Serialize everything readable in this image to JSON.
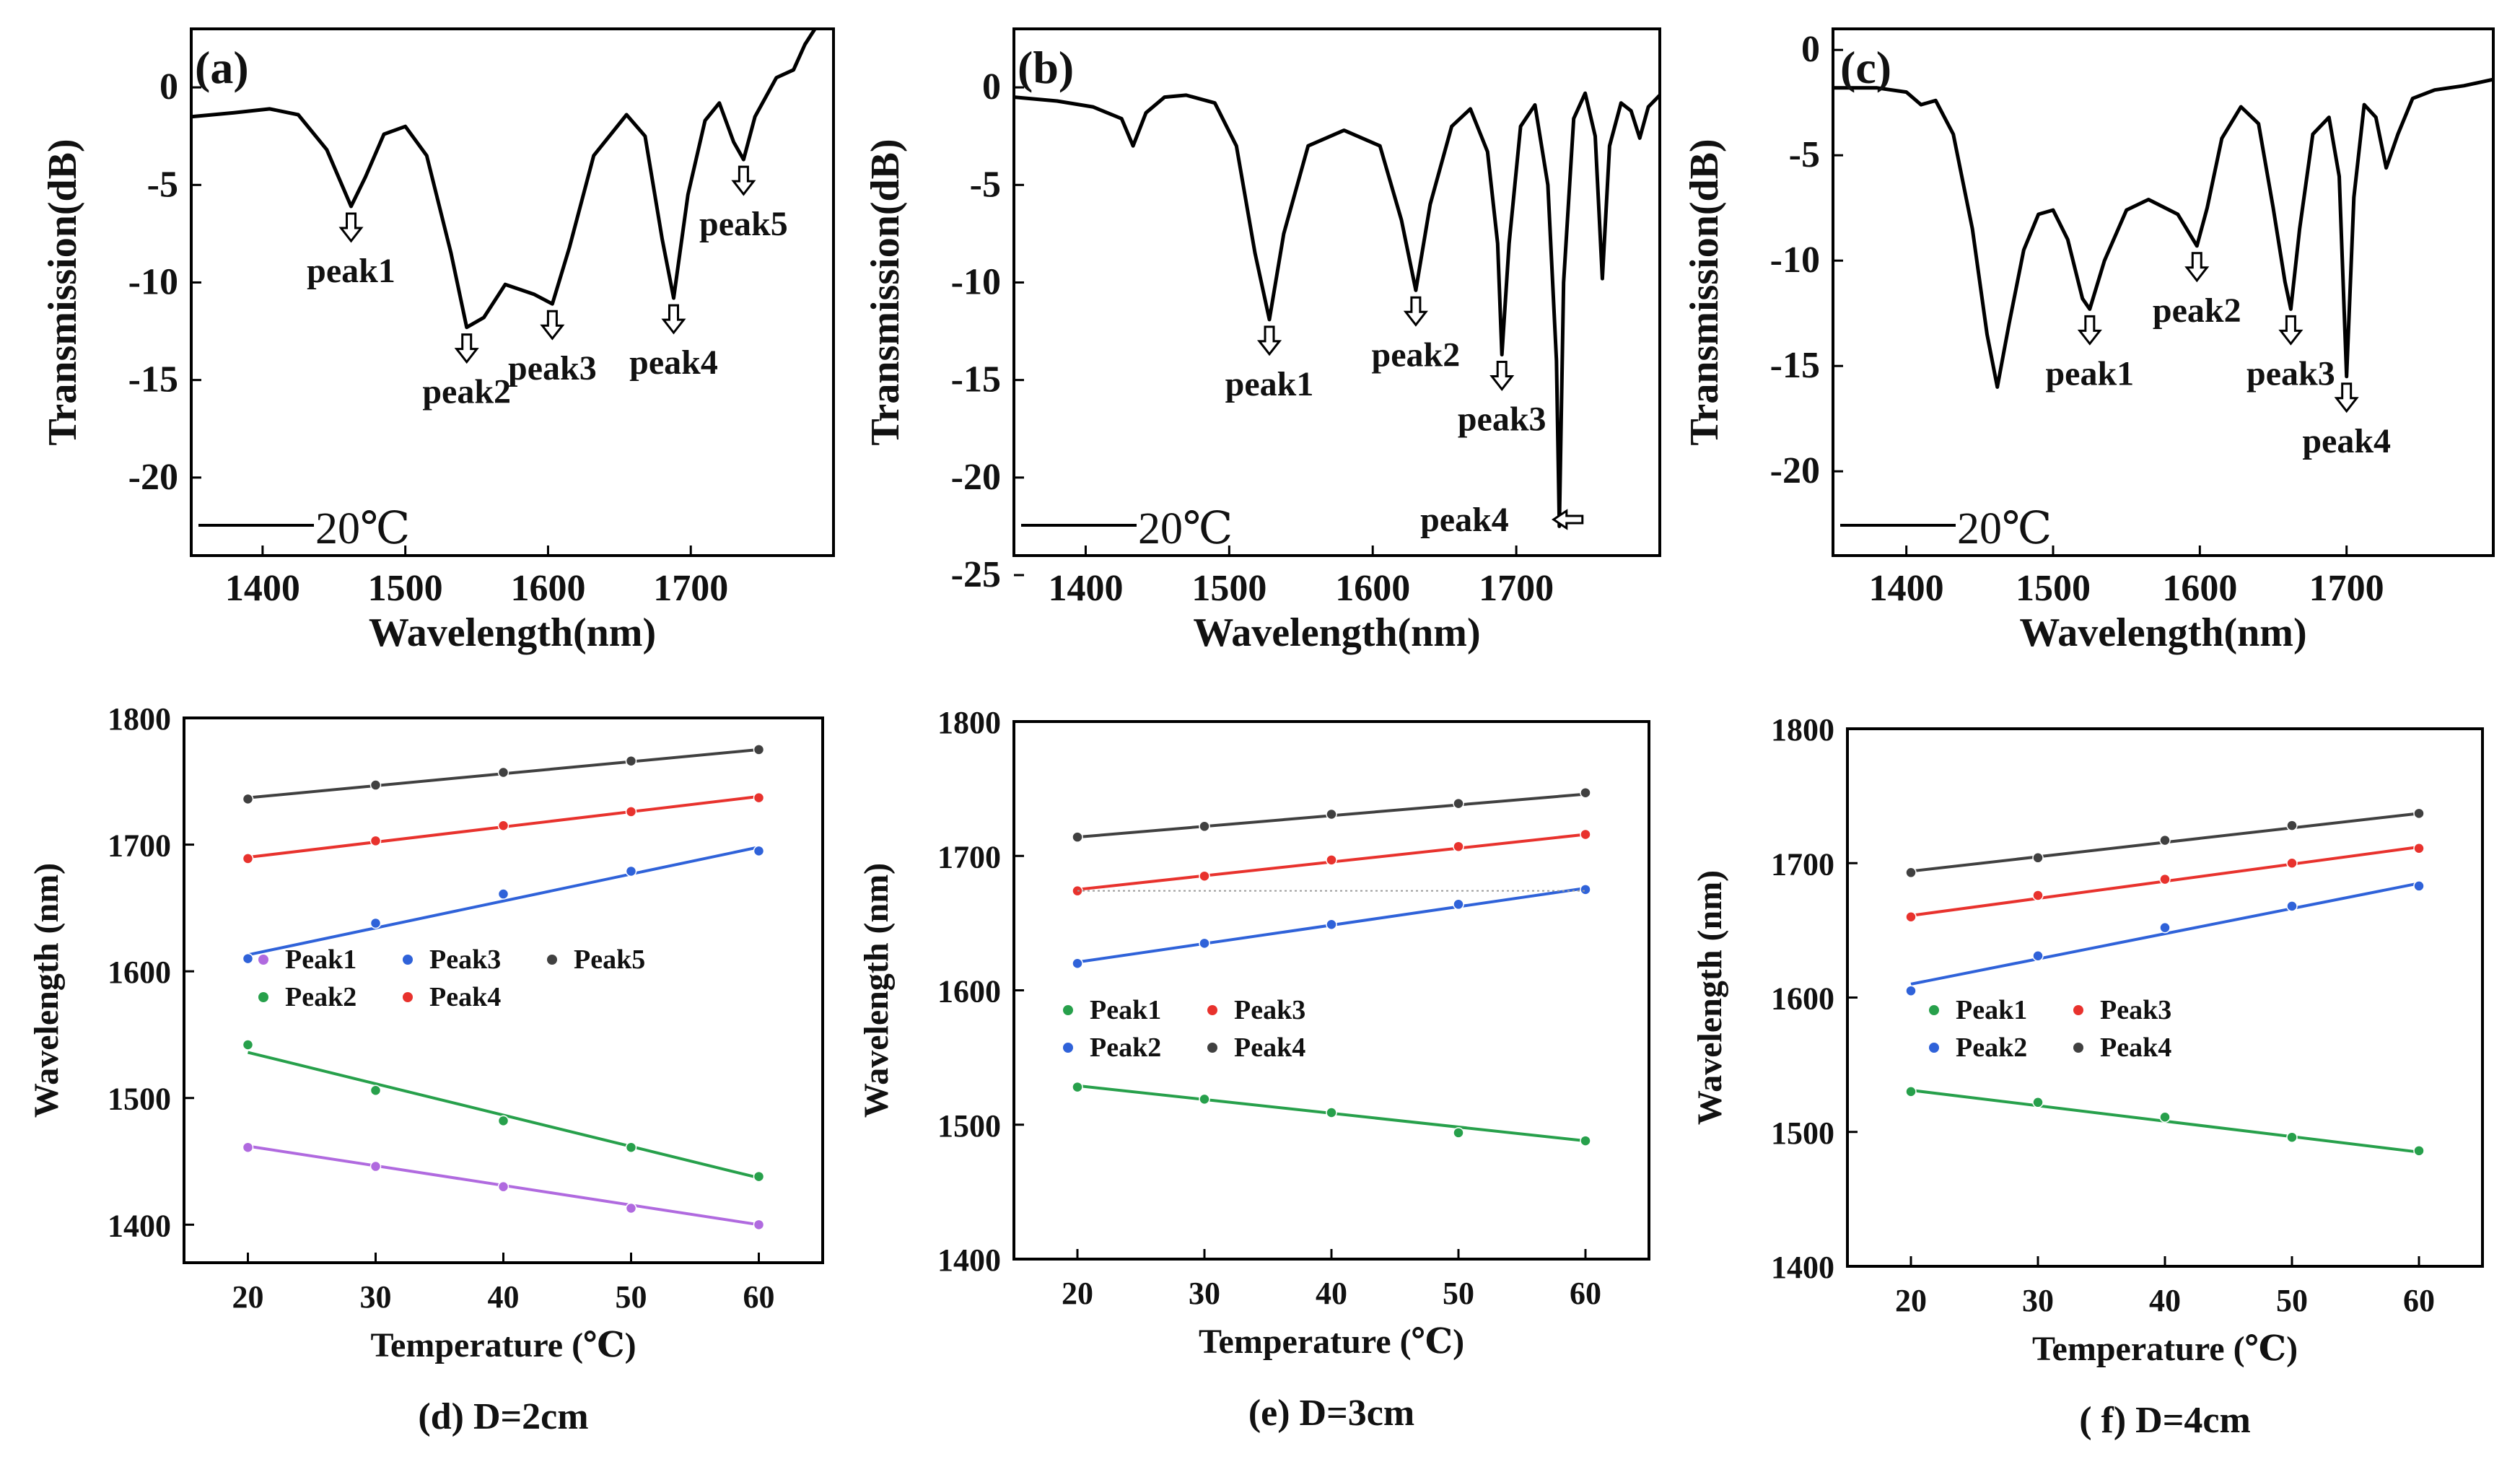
{
  "chart_data": [
    {
      "panel": "a",
      "type": "line",
      "label": "(a)",
      "xlabel": "Wavelength(nm)",
      "ylabel": "Transmission(dB)",
      "xlim": [
        1350,
        1800
      ],
      "ylim": [
        -24,
        3
      ],
      "xticks": [
        1400,
        1500,
        1600,
        1700
      ],
      "yticks": [
        0,
        -5,
        -10,
        -15,
        -20
      ],
      "legend": "20℃",
      "color": "#000000",
      "curve": [
        [
          1350,
          -1.5
        ],
        [
          1380,
          -1.3
        ],
        [
          1405,
          -1.1
        ],
        [
          1425,
          -1.4
        ],
        [
          1445,
          -3.2
        ],
        [
          1462,
          -6.1
        ],
        [
          1472,
          -4.6
        ],
        [
          1485,
          -2.4
        ],
        [
          1500,
          -2.0
        ],
        [
          1515,
          -3.5
        ],
        [
          1532,
          -8.5
        ],
        [
          1543,
          -12.3
        ],
        [
          1555,
          -11.8
        ],
        [
          1570,
          -10.1
        ],
        [
          1590,
          -10.6
        ],
        [
          1603,
          -11.1
        ],
        [
          1615,
          -8.2
        ],
        [
          1632,
          -3.5
        ],
        [
          1655,
          -1.4
        ],
        [
          1668,
          -2.5
        ],
        [
          1680,
          -7.8
        ],
        [
          1688,
          -10.8
        ],
        [
          1698,
          -5.5
        ],
        [
          1710,
          -1.7
        ],
        [
          1720,
          -0.8
        ],
        [
          1730,
          -2.8
        ],
        [
          1737,
          -3.7
        ],
        [
          1745,
          -1.5
        ],
        [
          1760,
          0.5
        ],
        [
          1772,
          0.9
        ],
        [
          1780,
          2.2
        ],
        [
          1787,
          3.0
        ]
      ],
      "peaks": [
        {
          "name": "peak1",
          "x": 1462,
          "y": -6.1
        },
        {
          "name": "peak2",
          "x": 1543,
          "y": -12.3
        },
        {
          "name": "peak3",
          "x": 1603,
          "y": -11.1
        },
        {
          "name": "peak4",
          "x": 1688,
          "y": -10.8
        },
        {
          "name": "peak5",
          "x": 1737,
          "y": -3.7
        }
      ]
    },
    {
      "panel": "b",
      "type": "line",
      "label": "(b)",
      "xlabel": "Wavelength(nm)",
      "ylabel": "Transmission(dB)",
      "xlim": [
        1350,
        1800
      ],
      "ylim": [
        -24,
        3
      ],
      "xticks": [
        1400,
        1500,
        1600,
        1700
      ],
      "yticks": [
        0,
        -5,
        -10,
        -15,
        -20,
        -25
      ],
      "legend": "20℃",
      "color": "#000000",
      "curve": [
        [
          1350,
          -0.5
        ],
        [
          1380,
          -0.7
        ],
        [
          1405,
          -1.0
        ],
        [
          1425,
          -1.6
        ],
        [
          1433,
          -3.0
        ],
        [
          1442,
          -1.3
        ],
        [
          1455,
          -0.5
        ],
        [
          1470,
          -0.4
        ],
        [
          1490,
          -0.8
        ],
        [
          1505,
          -3.0
        ],
        [
          1518,
          -8.5
        ],
        [
          1528,
          -11.9
        ],
        [
          1538,
          -7.5
        ],
        [
          1555,
          -3.0
        ],
        [
          1580,
          -2.2
        ],
        [
          1605,
          -3.0
        ],
        [
          1620,
          -6.8
        ],
        [
          1630,
          -10.4
        ],
        [
          1640,
          -6.0
        ],
        [
          1655,
          -2.0
        ],
        [
          1668,
          -1.1
        ],
        [
          1680,
          -3.3
        ],
        [
          1687,
          -8.0
        ],
        [
          1690,
          -13.7
        ],
        [
          1695,
          -8.0
        ],
        [
          1703,
          -2.0
        ],
        [
          1713,
          -0.9
        ],
        [
          1722,
          -5.0
        ],
        [
          1728,
          -14.0
        ],
        [
          1730,
          -22.5
        ],
        [
          1733,
          -10.0
        ],
        [
          1740,
          -1.6
        ],
        [
          1748,
          -0.3
        ],
        [
          1755,
          -2.5
        ],
        [
          1760,
          -9.8
        ],
        [
          1765,
          -3.0
        ],
        [
          1773,
          -0.8
        ],
        [
          1780,
          -1.2
        ],
        [
          1786,
          -2.6
        ],
        [
          1792,
          -1.0
        ],
        [
          1800,
          -0.4
        ]
      ],
      "peaks": [
        {
          "name": "peak1",
          "x": 1528,
          "y": -11.9
        },
        {
          "name": "peak2",
          "x": 1630,
          "y": -10.4
        },
        {
          "name": "peak3",
          "x": 1690,
          "y": -13.7
        },
        {
          "name": "peak4",
          "x": 1730,
          "y": -22.5
        }
      ]
    },
    {
      "panel": "c",
      "type": "line",
      "label": "(c)",
      "xlabel": "Wavelength(nm)",
      "ylabel": "Transmission(dB)",
      "xlim": [
        1350,
        1800
      ],
      "ylim": [
        -24,
        1
      ],
      "xticks": [
        1400,
        1500,
        1600,
        1700
      ],
      "yticks": [
        0,
        -5,
        -10,
        -15,
        -20
      ],
      "legend": "20℃",
      "color": "#000000",
      "curve": [
        [
          1350,
          -1.8
        ],
        [
          1380,
          -1.8
        ],
        [
          1400,
          -2.0
        ],
        [
          1410,
          -2.6
        ],
        [
          1420,
          -2.4
        ],
        [
          1432,
          -4.0
        ],
        [
          1445,
          -8.5
        ],
        [
          1455,
          -13.5
        ],
        [
          1462,
          -16.0
        ],
        [
          1470,
          -13.0
        ],
        [
          1480,
          -9.5
        ],
        [
          1490,
          -7.8
        ],
        [
          1500,
          -7.6
        ],
        [
          1510,
          -9.0
        ],
        [
          1520,
          -11.8
        ],
        [
          1525,
          -12.3
        ],
        [
          1535,
          -10.0
        ],
        [
          1550,
          -7.6
        ],
        [
          1565,
          -7.1
        ],
        [
          1585,
          -7.8
        ],
        [
          1598,
          -9.3
        ],
        [
          1605,
          -7.5
        ],
        [
          1615,
          -4.2
        ],
        [
          1628,
          -2.7
        ],
        [
          1640,
          -3.5
        ],
        [
          1650,
          -7.5
        ],
        [
          1658,
          -11.0
        ],
        [
          1662,
          -12.3
        ],
        [
          1668,
          -8.5
        ],
        [
          1677,
          -4.0
        ],
        [
          1688,
          -3.2
        ],
        [
          1695,
          -6.0
        ],
        [
          1700,
          -15.5
        ],
        [
          1705,
          -7.0
        ],
        [
          1712,
          -2.6
        ],
        [
          1720,
          -3.2
        ],
        [
          1727,
          -5.6
        ],
        [
          1735,
          -4.0
        ],
        [
          1745,
          -2.3
        ],
        [
          1760,
          -1.9
        ],
        [
          1780,
          -1.7
        ],
        [
          1800,
          -1.4
        ]
      ],
      "peaks": [
        {
          "name": "peak1",
          "x": 1525,
          "y": -12.3
        },
        {
          "name": "peak2",
          "x": 1598,
          "y": -9.3
        },
        {
          "name": "peak3",
          "x": 1662,
          "y": -12.3
        },
        {
          "name": "peak4",
          "x": 1700,
          "y": -15.5
        }
      ]
    },
    {
      "panel": "d",
      "type": "scatter",
      "caption": "(d) D=2cm",
      "xlabel": "Temperature (℃)",
      "ylabel": "Wavelength (nm)",
      "xlim": [
        15,
        65
      ],
      "ylim": [
        1370,
        1800
      ],
      "xticks": [
        20,
        30,
        40,
        50,
        60
      ],
      "yticks": [
        1400,
        1500,
        1600,
        1700,
        1800
      ],
      "x": [
        20,
        30,
        40,
        50,
        60
      ],
      "series": [
        {
          "name": "Peak1",
          "color": "#b06adf",
          "values": [
            1461,
            1446,
            1430,
            1413,
            1400
          ],
          "fit": [
            1462,
            1400
          ]
        },
        {
          "name": "Peak2",
          "color": "#27a04b",
          "values": [
            1542,
            1506,
            1482,
            1461,
            1438
          ],
          "fit": [
            1536,
            1437
          ]
        },
        {
          "name": "Peak3",
          "color": "#2f62d9",
          "values": [
            1610,
            1638,
            1661,
            1679,
            1695
          ],
          "fit": [
            1613,
            1698
          ]
        },
        {
          "name": "Peak4",
          "color": "#e8322d",
          "values": [
            1689,
            1703,
            1715,
            1726,
            1737
          ],
          "fit": [
            1690,
            1738
          ]
        },
        {
          "name": "Peak5",
          "color": "#404040",
          "values": [
            1736,
            1747,
            1757,
            1766,
            1775
          ],
          "fit": [
            1737,
            1775
          ]
        }
      ],
      "legend_rows": [
        [
          "Peak1",
          "Peak3",
          "Peak5"
        ],
        [
          "Peak2",
          "Peak4"
        ]
      ]
    },
    {
      "panel": "e",
      "type": "scatter",
      "caption": "(e) D=3cm",
      "xlabel": "Temperature (℃)",
      "ylabel": "Wavelength (nm)",
      "xlim": [
        15,
        65
      ],
      "ylim": [
        1400,
        1800
      ],
      "xticks": [
        20,
        30,
        40,
        50,
        60
      ],
      "yticks": [
        1400,
        1500,
        1600,
        1700,
        1800
      ],
      "x": [
        20,
        30,
        40,
        50,
        60
      ],
      "series": [
        {
          "name": "Peak1",
          "color": "#27a04b",
          "values": [
            1528,
            1519,
            1509,
            1494,
            1488
          ],
          "fit": [
            1529,
            1488
          ]
        },
        {
          "name": "Peak2",
          "color": "#2f62d9",
          "values": [
            1620,
            1635,
            1649,
            1664,
            1675
          ],
          "fit": [
            1621,
            1676
          ]
        },
        {
          "name": "Peak3",
          "color": "#e8322d",
          "values": [
            1674,
            1685,
            1697,
            1707,
            1716
          ],
          "fit": [
            1675,
            1716
          ]
        },
        {
          "name": "Peak4",
          "color": "#404040",
          "values": [
            1714,
            1722,
            1731,
            1739,
            1747
          ],
          "fit": [
            1714,
            1746
          ]
        }
      ],
      "legend_rows": [
        [
          "Peak1",
          "Peak3"
        ],
        [
          "Peak2",
          "Peak4"
        ]
      ]
    },
    {
      "panel": "f",
      "type": "scatter",
      "caption": "( f) D=4cm",
      "xlabel": "Temperature (℃)",
      "ylabel": "Wavelength (nm)",
      "xlim": [
        15,
        65
      ],
      "ylim": [
        1400,
        1800
      ],
      "xticks": [
        20,
        30,
        40,
        50,
        60
      ],
      "yticks": [
        1400,
        1500,
        1600,
        1700,
        1800
      ],
      "x": [
        20,
        30,
        40,
        50,
        60
      ],
      "series": [
        {
          "name": "Peak1",
          "color": "#27a04b",
          "values": [
            1530,
            1522,
            1511,
            1496,
            1486
          ],
          "fit": [
            1531,
            1485
          ]
        },
        {
          "name": "Peak2",
          "color": "#2f62d9",
          "values": [
            1605,
            1631,
            1652,
            1668,
            1683
          ],
          "fit": [
            1610,
            1685
          ]
        },
        {
          "name": "Peak3",
          "color": "#e8322d",
          "values": [
            1660,
            1676,
            1688,
            1700,
            1711
          ],
          "fit": [
            1661,
            1712
          ]
        },
        {
          "name": "Peak4",
          "color": "#404040",
          "values": [
            1693,
            1704,
            1717,
            1728,
            1737
          ],
          "fit": [
            1694,
            1737
          ]
        }
      ],
      "legend_rows": [
        [
          "Peak1",
          "Peak3"
        ],
        [
          "Peak2",
          "Peak4"
        ]
      ]
    }
  ]
}
